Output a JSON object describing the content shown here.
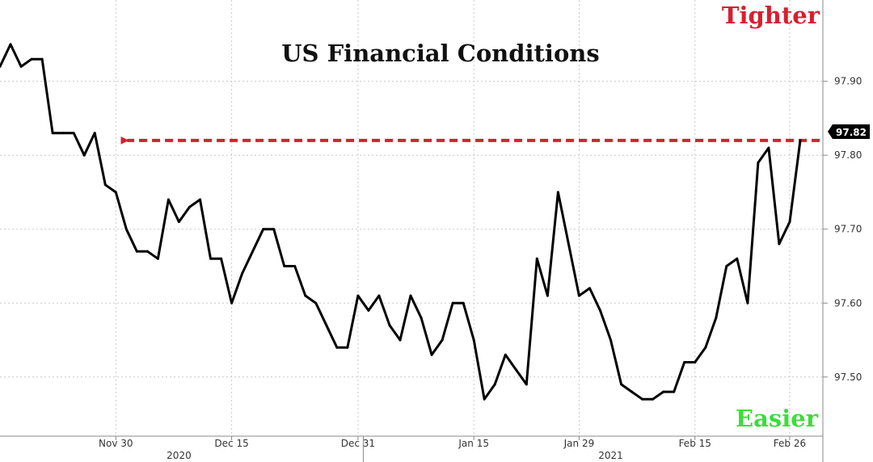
{
  "chart_data": {
    "type": "line",
    "title": "US Financial Conditions",
    "annotations": {
      "top_label": "Tighter",
      "bottom_label": "Easier",
      "current_value_label": "97.82"
    },
    "colors": {
      "series": "#000000",
      "arrow": "#d6202f",
      "tighter": "#d6202f",
      "easier": "#3ddc3d",
      "callout_bg": "#000000"
    },
    "y_axis": {
      "position": "right",
      "ylim": [
        97.42,
        98.01
      ],
      "ticks": [
        "97.50",
        "97.60",
        "97.70",
        "97.80",
        "97.90"
      ]
    },
    "x_axis": {
      "tick_labels": [
        {
          "label": "Nov 30",
          "index": 11
        },
        {
          "label": "Dec 15",
          "index": 22
        },
        {
          "label": "Dec 31",
          "index": 34
        },
        {
          "label": "Jan 15",
          "index": 45
        },
        {
          "label": "Jan 29",
          "index": 55
        },
        {
          "label": "Feb 15",
          "index": 66
        },
        {
          "label": "Feb 26",
          "index": 75
        }
      ],
      "year_labels": [
        {
          "label": "2020",
          "index": 17
        },
        {
          "label": "2021",
          "index": 58
        }
      ],
      "year_divider_index": 34.5
    },
    "grid": true,
    "reference_line": {
      "value": 97.82,
      "from_index": 11,
      "to_index": 78,
      "style": "dashed-arrow"
    },
    "series": [
      {
        "values": [
          97.92,
          97.95,
          97.92,
          97.93,
          97.93,
          97.83,
          97.83,
          97.83,
          97.8,
          97.83,
          97.76,
          97.75,
          97.7,
          97.67,
          97.67,
          97.66,
          97.74,
          97.71,
          97.73,
          97.74,
          97.66,
          97.66,
          97.6,
          97.64,
          97.67,
          97.7,
          97.7,
          97.65,
          97.65,
          97.61,
          97.6,
          97.57,
          97.54,
          97.54,
          97.61,
          97.59,
          97.61,
          97.57,
          97.55,
          97.61,
          97.58,
          97.53,
          97.55,
          97.6,
          97.6,
          97.55,
          97.47,
          97.49,
          97.53,
          97.51,
          97.49,
          97.66,
          97.61,
          97.75,
          97.68,
          97.61,
          97.62,
          97.59,
          97.55,
          97.49,
          97.48,
          97.47,
          97.47,
          97.48,
          97.48,
          97.52,
          97.52,
          97.54,
          97.58,
          97.65,
          97.66,
          97.6,
          97.79,
          97.81,
          97.68,
          97.71,
          97.82
        ]
      }
    ]
  }
}
